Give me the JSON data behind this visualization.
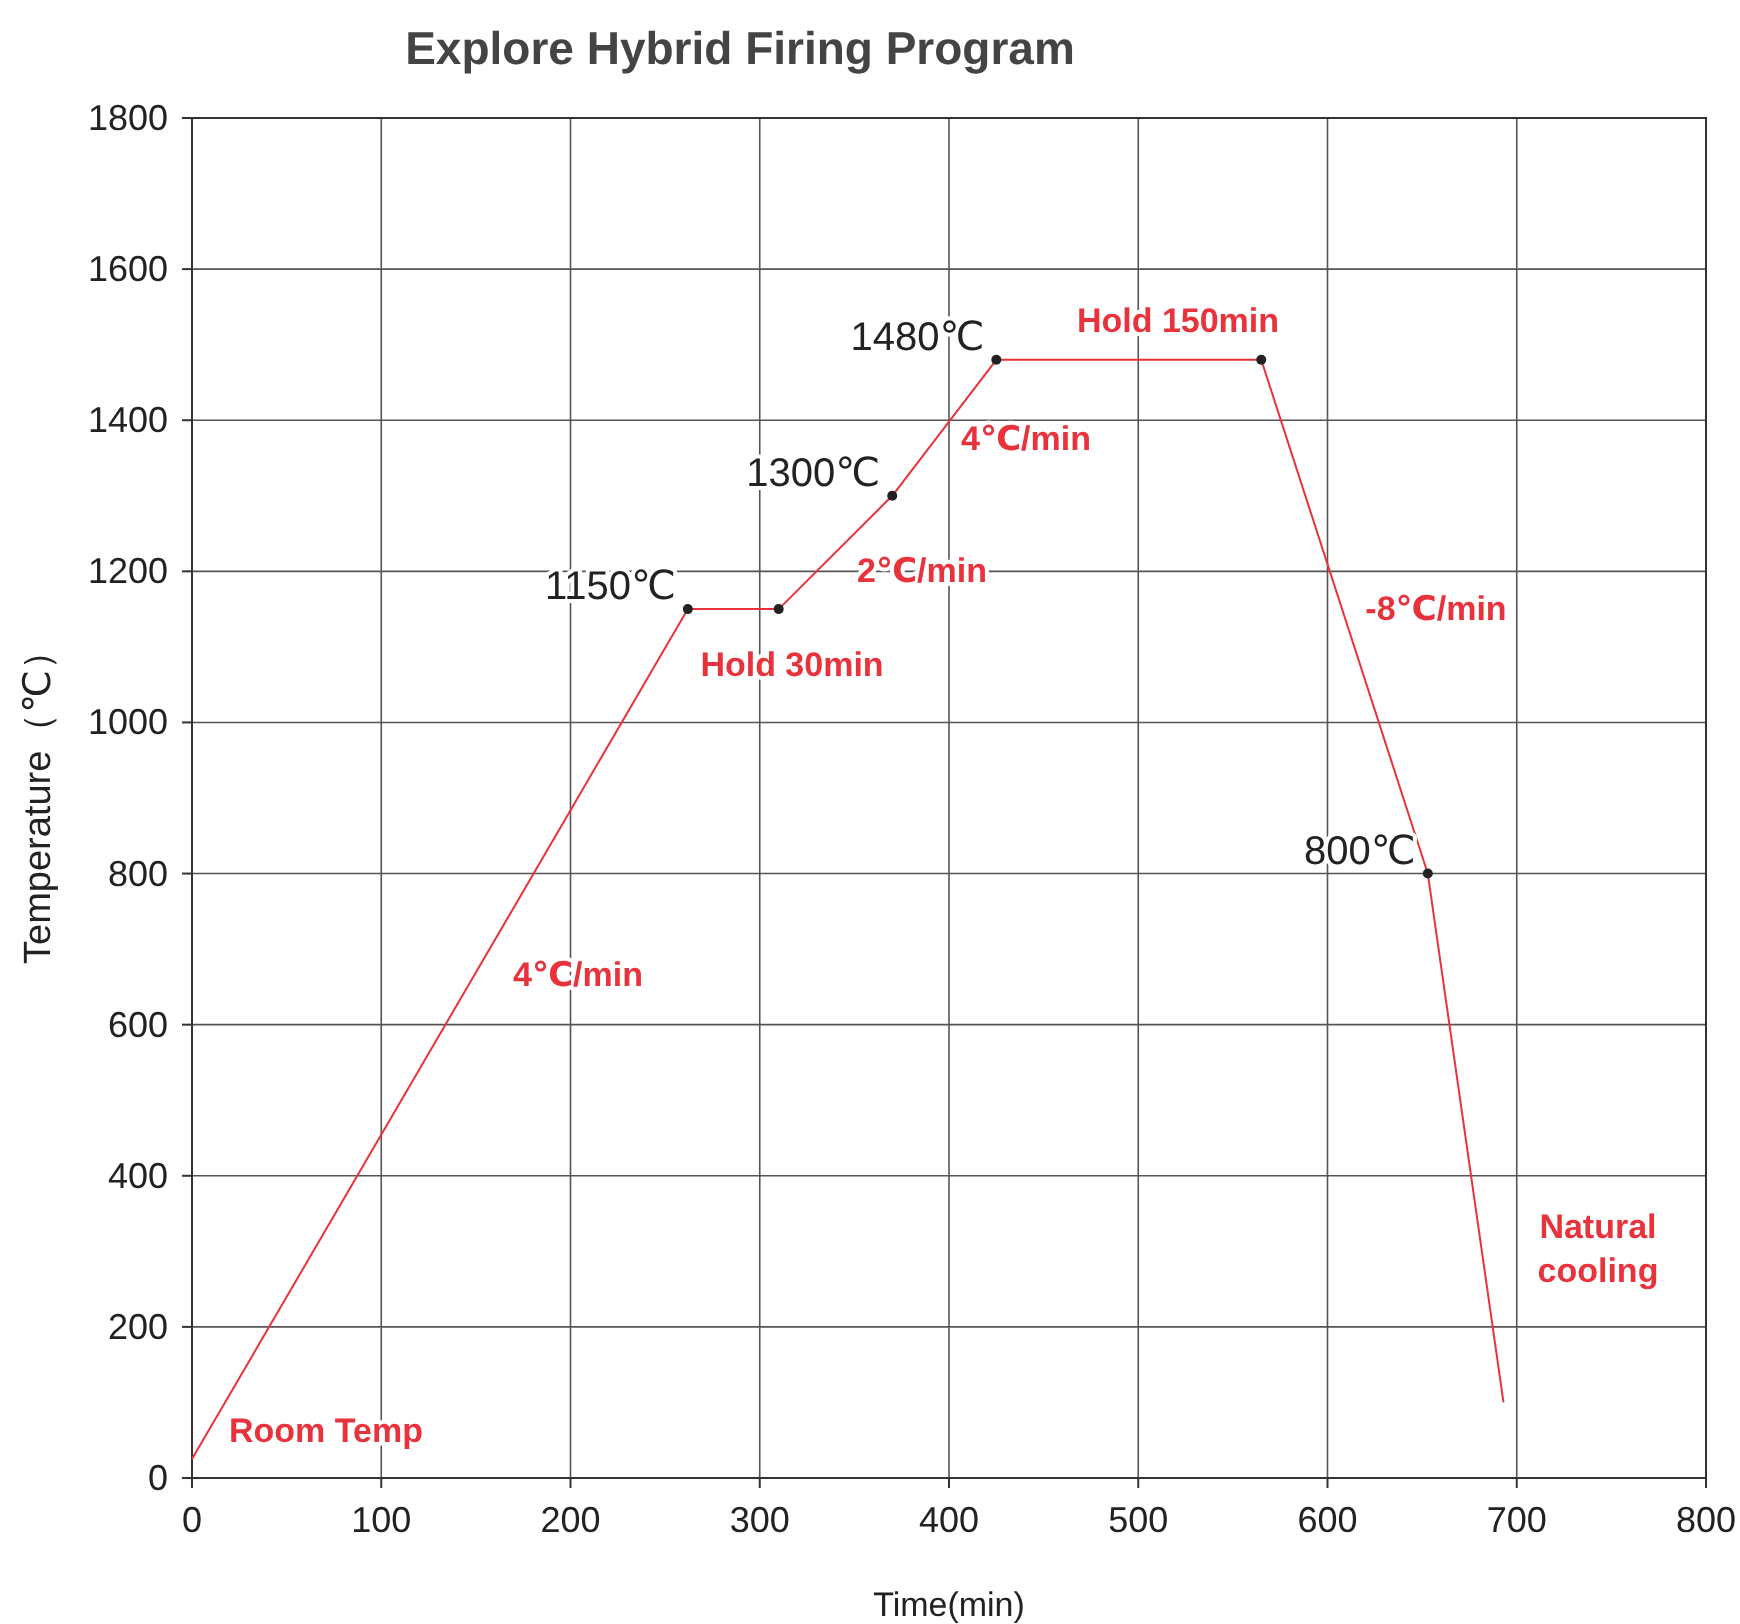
{
  "chart_data": {
    "type": "line",
    "title": "Explore Hybrid Firing Program",
    "xlabel": "Time(min)",
    "ylabel": "Temperature（℃）",
    "xlim": [
      0,
      800
    ],
    "xticks": [
      0,
      100,
      200,
      300,
      400,
      500,
      600,
      700,
      800
    ],
    "ylim": [
      0,
      1800
    ],
    "yticks": [
      0,
      200,
      400,
      600,
      800,
      1000,
      1200,
      1400,
      1600,
      1800
    ],
    "grid": true,
    "series": [
      {
        "color": "#e8323c",
        "x": [
          0,
          262,
          310,
          370,
          425,
          565,
          653,
          693
        ],
        "values": [
          25,
          1150,
          1150,
          1300,
          1480,
          1480,
          800,
          100
        ]
      },
      {
        "type": "scatter",
        "color": "#222222",
        "marker": "circle",
        "x": [
          262,
          310,
          370,
          425,
          565,
          653
        ],
        "values": [
          1150,
          1150,
          1300,
          1480,
          1480,
          800
        ],
        "value_labels": [
          "1150℃",
          null,
          "1300℃",
          "1480℃",
          null,
          "800℃"
        ]
      }
    ],
    "annotations": [
      "Room Temp",
      "4℃/min",
      "Hold 30min",
      "2℃/min",
      "4℃/min",
      "Hold 150min",
      "-8℃/min",
      "Natural\ncooling"
    ]
  }
}
